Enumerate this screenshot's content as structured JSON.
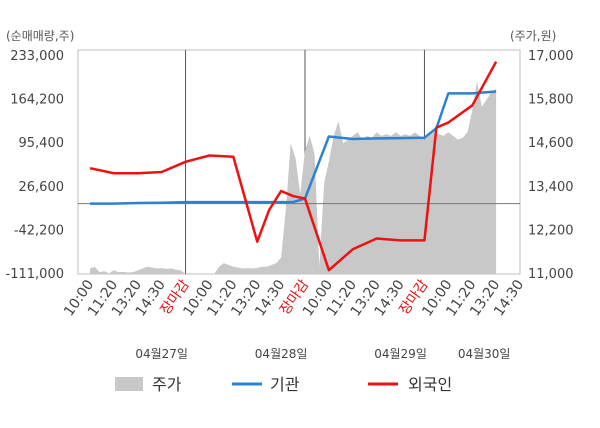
{
  "chart_data": {
    "type": "line",
    "left_axis_unit": "(순매매량,주)",
    "right_axis_unit": "(주가,원)",
    "left_ticks": [
      "233,000",
      "164,200",
      "95,400",
      "26,600",
      "-42,200",
      "-111,000"
    ],
    "right_ticks": [
      "17,000",
      "15,800",
      "14,600",
      "13,400",
      "12,200",
      "11,000"
    ],
    "ylim_left": [
      -111000,
      233000
    ],
    "ylim_right": [
      11000,
      17000
    ],
    "x_tick_labels": [
      "10:00",
      "11:20",
      "13:20",
      "14:30",
      "장마감",
      "10:00",
      "11:20",
      "13:20",
      "14:30",
      "장마감",
      "10:00",
      "11:20",
      "13:20",
      "14:30",
      "장마감",
      "10:00",
      "11:20",
      "13:20",
      "14:30"
    ],
    "x_tick_red_indices": [
      4,
      9,
      14
    ],
    "dates": [
      "04월27일",
      "04월28일",
      "04월29일",
      "04월30일"
    ],
    "date_positions": [
      3.0,
      8.0,
      13.0,
      16.5
    ],
    "grid": true,
    "legend_position": "bottom",
    "series": [
      {
        "name": "주가",
        "kind": "area",
        "axis": "right",
        "color": "#c8c8c8",
        "x": [
          0,
          0.2,
          0.4,
          0.6,
          0.8,
          1.0,
          1.2,
          1.4,
          1.6,
          1.8,
          2.0,
          2.2,
          2.4,
          2.6,
          2.8,
          3.0,
          3.2,
          3.4,
          3.6,
          3.8,
          4.0,
          4.2,
          4.4,
          4.6,
          4.8,
          5.0,
          5.2,
          5.4,
          5.6,
          5.8,
          6.0,
          6.2,
          6.4,
          6.6,
          6.8,
          7.0,
          7.2,
          7.4,
          7.6,
          7.8,
          8.0,
          8.2,
          8.4,
          8.6,
          8.8,
          9.0,
          9.2,
          9.4,
          9.6,
          9.8,
          10.0,
          10.2,
          10.4,
          10.6,
          10.8,
          11.0,
          11.2,
          11.4,
          11.6,
          11.8,
          12.0,
          12.2,
          12.4,
          12.6,
          12.8,
          13.0,
          13.2,
          13.4,
          13.6,
          13.8,
          14.0,
          14.2,
          14.4,
          14.6,
          14.8,
          15.0,
          15.2,
          15.4,
          15.6,
          15.8,
          16.0,
          16.2,
          16.4,
          16.6,
          16.8,
          17.0
        ],
        "values": [
          11150,
          11200,
          11050,
          11080,
          11020,
          11100,
          11050,
          11060,
          11040,
          11050,
          11100,
          11150,
          11200,
          11180,
          11150,
          11160,
          11140,
          11150,
          11120,
          11100,
          11000,
          11000,
          11000,
          11000,
          11000,
          11000,
          11000,
          11200,
          11300,
          11250,
          11200,
          11180,
          11150,
          11160,
          11150,
          11170,
          11200,
          11200,
          11250,
          11300,
          11450,
          12800,
          14600,
          14200,
          13200,
          14400,
          14800,
          14300,
          11200,
          13500,
          14100,
          14800,
          15200,
          14600,
          14700,
          14800,
          14900,
          14700,
          14800,
          14750,
          14900,
          14800,
          14850,
          14800,
          14900,
          14800,
          14850,
          14800,
          14900,
          14800,
          14700,
          14800,
          14900,
          14850,
          14800,
          14900,
          14800,
          14700,
          14750,
          14900,
          15500,
          16300,
          15600,
          15800,
          16000,
          16100
        ],
        "x_end": 17.0
      },
      {
        "name": "기관",
        "kind": "line",
        "axis": "left",
        "color": "#2a82d0",
        "x": [
          0,
          1,
          2,
          3,
          4,
          5,
          6,
          7,
          8,
          8.5,
          9,
          10,
          11,
          12,
          13,
          14,
          14.5,
          15,
          16,
          17
        ],
        "values": [
          0,
          0,
          1000,
          1500,
          2500,
          2500,
          2500,
          2500,
          2500,
          2500,
          8000,
          106000,
          102000,
          103000,
          103500,
          104000,
          119000,
          174000,
          174000,
          177000
        ]
      },
      {
        "name": "외국인",
        "kind": "line",
        "axis": "left",
        "color": "#ee1111",
        "x": [
          0,
          1,
          2,
          3,
          4,
          5,
          6,
          7,
          7.5,
          8,
          8.5,
          9,
          10,
          11,
          12,
          13,
          14,
          14.5,
          15,
          16,
          17
        ],
        "values": [
          56000,
          48000,
          48000,
          50000,
          66000,
          76000,
          74000,
          -60000,
          -10000,
          20000,
          12000,
          8000,
          -105000,
          -72000,
          -55000,
          -58000,
          -58000,
          120000,
          128000,
          155000,
          224000
        ]
      }
    ]
  }
}
